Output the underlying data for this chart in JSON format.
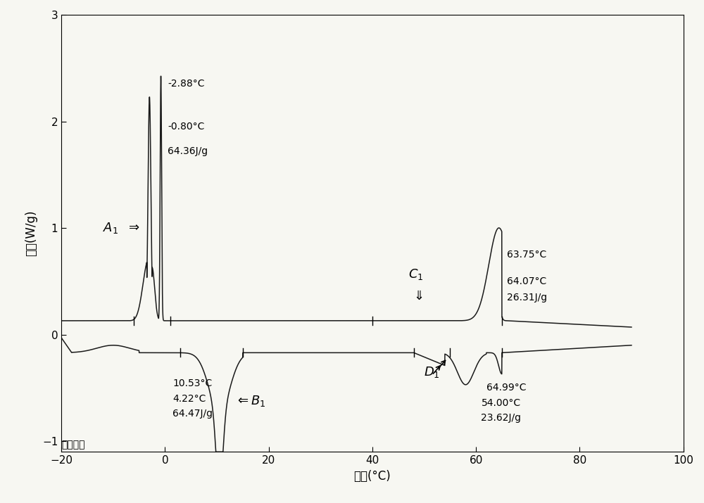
{
  "xlim": [
    -20,
    100
  ],
  "ylim": [
    -1.1,
    3.0
  ],
  "xlabel": "温度(°C)",
  "ylabel": "热流(W/g)",
  "bottom_label": "向上放热",
  "xticks": [
    -20,
    0,
    20,
    40,
    60,
    80,
    100
  ],
  "yticks": [
    -1.0,
    0,
    1.0,
    2.0,
    3.0
  ],
  "curve_color": "#1a1a1a",
  "background_color": "#f7f7f2",
  "curve1_baseline": 0.13,
  "curve2_baseline": -0.17,
  "annot_fontsize": 10,
  "label_fontsize": 13
}
